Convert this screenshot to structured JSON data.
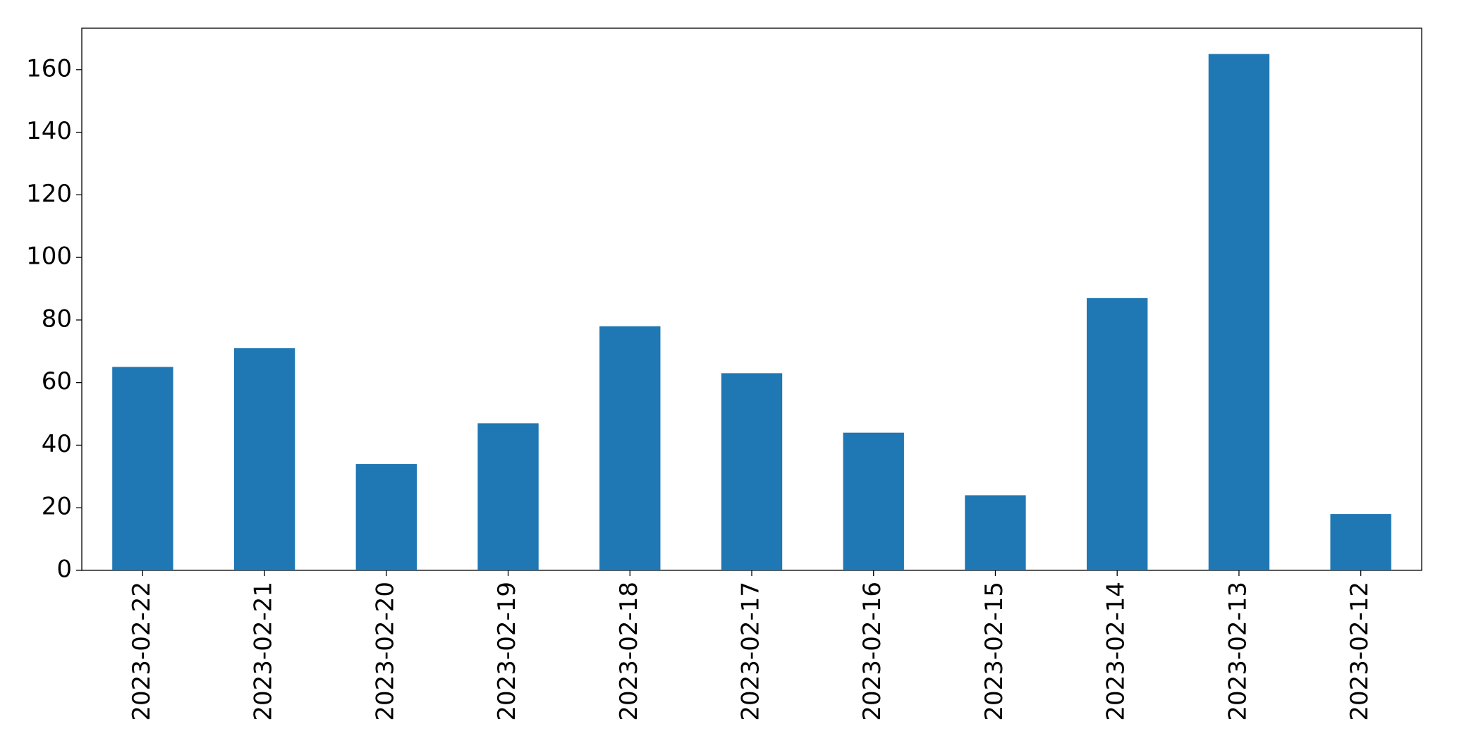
{
  "chart_data": {
    "type": "bar",
    "categories": [
      "2023-02-22",
      "2023-02-21",
      "2023-02-20",
      "2023-02-19",
      "2023-02-18",
      "2023-02-17",
      "2023-02-16",
      "2023-02-15",
      "2023-02-14",
      "2023-02-13",
      "2023-02-12"
    ],
    "values": [
      65,
      71,
      34,
      47,
      78,
      63,
      44,
      24,
      87,
      165,
      18
    ],
    "color": "#1f77b4",
    "ylim": [
      0,
      173.25
    ],
    "yticks": [
      0,
      20,
      40,
      60,
      80,
      100,
      120,
      140,
      160
    ],
    "grid": false
  }
}
